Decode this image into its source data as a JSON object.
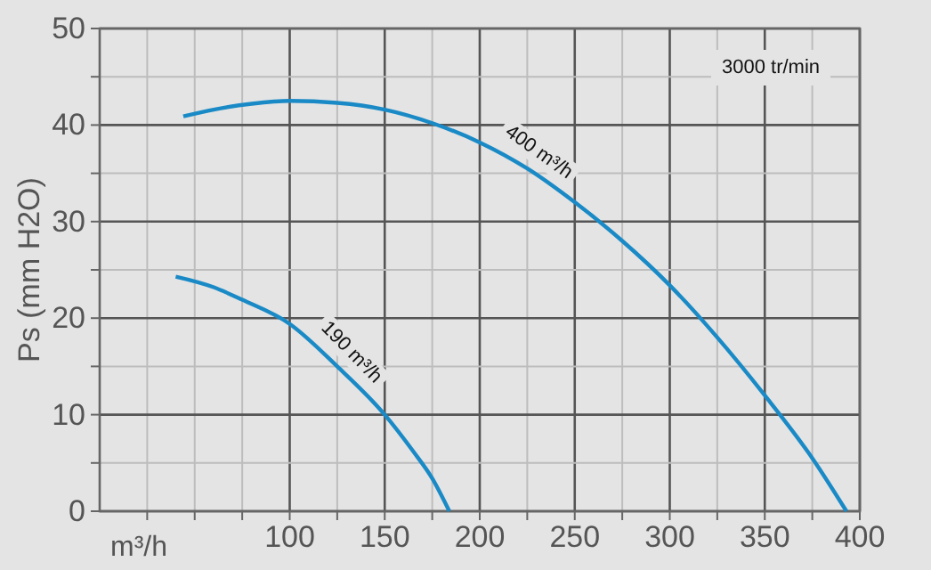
{
  "chart_data": {
    "type": "line",
    "xlabel": "m³/h",
    "ylabel": "Ps (mm H2O)",
    "annotations": [
      "3000 tr/min"
    ],
    "x": [
      44,
      60,
      80,
      100,
      125,
      150,
      175,
      200,
      225,
      250,
      275,
      300,
      325,
      350,
      375,
      393
    ],
    "series": [
      {
        "name": "400 m³/h",
        "color": "#1a8ac6",
        "values": [
          40.9,
          41.6,
          42.2,
          42.5,
          42.3,
          41.6,
          40.2,
          38.2,
          35.5,
          32,
          28,
          23.4,
          18,
          12,
          5.5,
          0
        ]
      },
      {
        "name": "190 m³/h",
        "color": "#1a8ac6",
        "x": [
          40,
          60,
          75,
          100,
          125,
          150,
          165,
          175,
          184
        ],
        "values": [
          24.3,
          23.2,
          21.9,
          19.4,
          15,
          10,
          6.2,
          3.4,
          0
        ]
      }
    ],
    "xlim": [
      0,
      400
    ],
    "ylim": [
      0,
      50
    ],
    "xticks": [
      {
        "value": 25,
        "label": null
      },
      {
        "value": 50,
        "label": null
      },
      {
        "value": 75,
        "label": null
      },
      100,
      {
        "value": 125,
        "label": null
      },
      150,
      {
        "value": 175,
        "label": null
      },
      200,
      {
        "value": 225,
        "label": null
      },
      250,
      {
        "value": 275,
        "label": null
      },
      300,
      {
        "value": 325,
        "label": null
      },
      350,
      {
        "value": 375,
        "label": null
      },
      400
    ],
    "yticks": [
      0,
      {
        "value": 5,
        "label": null
      },
      10,
      {
        "value": 15,
        "label": null
      },
      20,
      {
        "value": 25,
        "label": null
      },
      30,
      {
        "value": 35,
        "label": null
      },
      40,
      {
        "value": 45,
        "label": null
      },
      50
    ],
    "grid": true,
    "legend": false,
    "marker": "none",
    "line_style": "solid"
  }
}
